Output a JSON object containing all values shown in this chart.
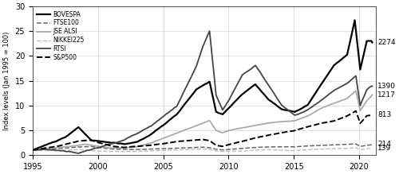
{
  "title": "",
  "ylabel": "Index levels (Jan 1995 = 100)",
  "xlabel": "",
  "ylim": [
    0,
    30
  ],
  "yticks": [
    0,
    5,
    10,
    15,
    20,
    25,
    30
  ],
  "xlim": [
    1995.0,
    2021.3
  ],
  "xticks": [
    1995,
    2000,
    2005,
    2010,
    2015,
    2020
  ],
  "right_labels": [
    {
      "text": "2274",
      "y": 22.74
    },
    {
      "text": "1390",
      "y": 13.9
    },
    {
      "text": "1217",
      "y": 12.17
    },
    {
      "text": "813",
      "y": 8.13
    },
    {
      "text": "214",
      "y": 2.14
    },
    {
      "text": "139",
      "y": 1.39
    }
  ],
  "series": [
    {
      "label": "BOVESPA",
      "color": "#000000",
      "ls": "solid",
      "lw": 1.6
    },
    {
      "label": "FTSE100",
      "color": "#666666",
      "ls": "dashed",
      "lw": 1.1
    },
    {
      "label": "JSE ALSI",
      "color": "#aaaaaa",
      "ls": "solid",
      "lw": 1.3
    },
    {
      "label": "NIKKEI225",
      "color": "#bbbbbb",
      "ls": "dashed",
      "lw": 1.0
    },
    {
      "label": "RTSI",
      "color": "#444444",
      "ls": "solid",
      "lw": 1.3
    },
    {
      "label": "S&P500",
      "color": "#000000",
      "ls": "dashed",
      "lw": 1.4
    }
  ],
  "background_color": "#ffffff",
  "grid_color": "#cccccc"
}
